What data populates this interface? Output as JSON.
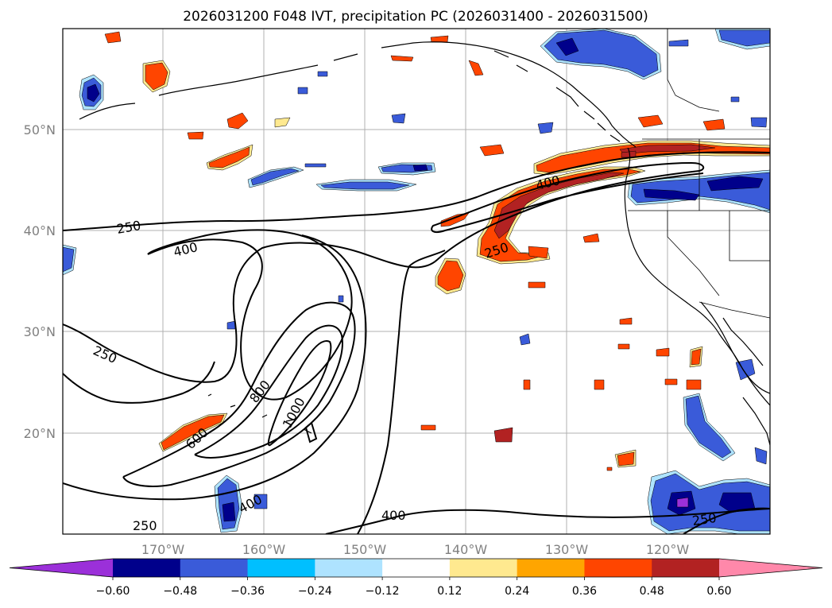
{
  "map": {
    "title": "2026031200 F048 IVT, precipitation PC (2026031400 - 2026031500)",
    "lon_labels": [
      "170°W",
      "160°W",
      "150°W",
      "140°W",
      "130°W",
      "120°W"
    ],
    "lat_labels": [
      "50°N",
      "40°N",
      "30°N",
      "20°N"
    ],
    "contour_labels": {
      "c250_west": "250",
      "c400_west": "400",
      "c250_lower": "250",
      "c800": "800",
      "c1000": "1000",
      "c600": "600",
      "c400_south": "400",
      "c250_south": "250",
      "c400_southmid": "400",
      "c400_north": "400",
      "c250_mid": "250",
      "c250_se": "250"
    }
  },
  "colorbar": {
    "ticks": [
      "−0.60",
      "−0.48",
      "−0.36",
      "−0.24",
      "−0.12",
      "0.12",
      "0.24",
      "0.36",
      "0.48",
      "0.60"
    ],
    "colors": [
      "#9b30d9",
      "#00008b",
      "#3a5bd9",
      "#00bfff",
      "#aee3ff",
      "#ffffff",
      "#ffe98f",
      "#ffa500",
      "#ff4500",
      "#b22222",
      "#ff88aa"
    ]
  }
}
